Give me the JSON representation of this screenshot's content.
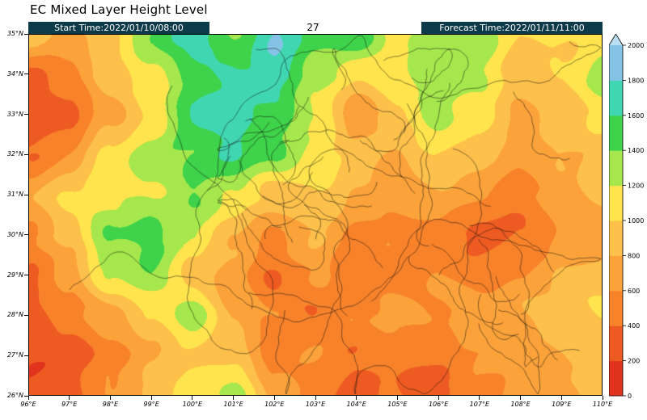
{
  "header": {
    "title": "EC Mixed Layer Height Level",
    "start_time": "Start Time:2022/01/10/08:00",
    "step": "27",
    "forecast_time": "Forecast Time:2022/01/11/11:00",
    "bar_color": "#0d3a49"
  },
  "chart_data": {
    "type": "heatmap",
    "title": "EC Mixed Layer Height Level",
    "x_ticks": [
      "96°E",
      "97°E",
      "98°E",
      "99°E",
      "100°E",
      "101°E",
      "102°E",
      "103°E",
      "104°E",
      "105°E",
      "106°E",
      "107°E",
      "108°E",
      "109°E",
      "110°E"
    ],
    "y_ticks": [
      "35°N",
      "34°N",
      "33°N",
      "32°N",
      "31°N",
      "30°N",
      "29°N",
      "28°N",
      "27°N",
      "26°N"
    ],
    "x_range": [
      96,
      110
    ],
    "y_range": [
      26,
      35
    ],
    "colorbar": {
      "levels": [
        0,
        200,
        400,
        600,
        800,
        1000,
        1200,
        1400,
        1600,
        1800,
        2000
      ],
      "band_colors": [
        "#e1341e",
        "#ee5b22",
        "#f7822a",
        "#fba23a",
        "#fdc04a",
        "#ffe44d",
        "#a5e74c",
        "#3ed34a",
        "#41d6b2",
        "#85c3e6"
      ],
      "extend_color": "#b9ddf1"
    },
    "grid": {
      "lon_start": 96,
      "lon_step": 1,
      "lat_start": 35,
      "lat_step": -1,
      "values": [
        [
          900,
          700,
          1000,
          1400,
          1700,
          1400,
          1800,
          1500,
          1600,
          1100,
          1300,
          1400,
          1000,
          1000,
          1100
        ],
        [
          400,
          500,
          900,
          1100,
          1500,
          1600,
          1700,
          1300,
          1000,
          1200,
          1400,
          1200,
          900,
          1000,
          1300
        ],
        [
          300,
          300,
          700,
          1000,
          1600,
          1700,
          1500,
          1200,
          600,
          1000,
          1300,
          1100,
          800,
          900,
          1100
        ],
        [
          400,
          600,
          1100,
          1300,
          1400,
          1600,
          1400,
          1100,
          900,
          800,
          1000,
          900,
          700,
          800,
          900
        ],
        [
          800,
          1000,
          1100,
          1200,
          1400,
          1200,
          900,
          1000,
          800,
          700,
          800,
          600,
          500,
          700,
          800
        ],
        [
          600,
          900,
          1400,
          1500,
          1200,
          800,
          600,
          800,
          500,
          600,
          500,
          300,
          400,
          600,
          700
        ],
        [
          400,
          700,
          1200,
          1400,
          900,
          700,
          400,
          600,
          400,
          500,
          600,
          500,
          600,
          800,
          900
        ],
        [
          300,
          500,
          700,
          1000,
          1300,
          800,
          600,
          400,
          600,
          700,
          600,
          700,
          800,
          900,
          1000
        ],
        [
          200,
          300,
          500,
          800,
          1000,
          900,
          500,
          600,
          400,
          500,
          400,
          600,
          700,
          800,
          900
        ],
        [
          300,
          400,
          600,
          900,
          1100,
          1300,
          800,
          500,
          300,
          400,
          300,
          500,
          600,
          700,
          800
        ]
      ]
    }
  }
}
